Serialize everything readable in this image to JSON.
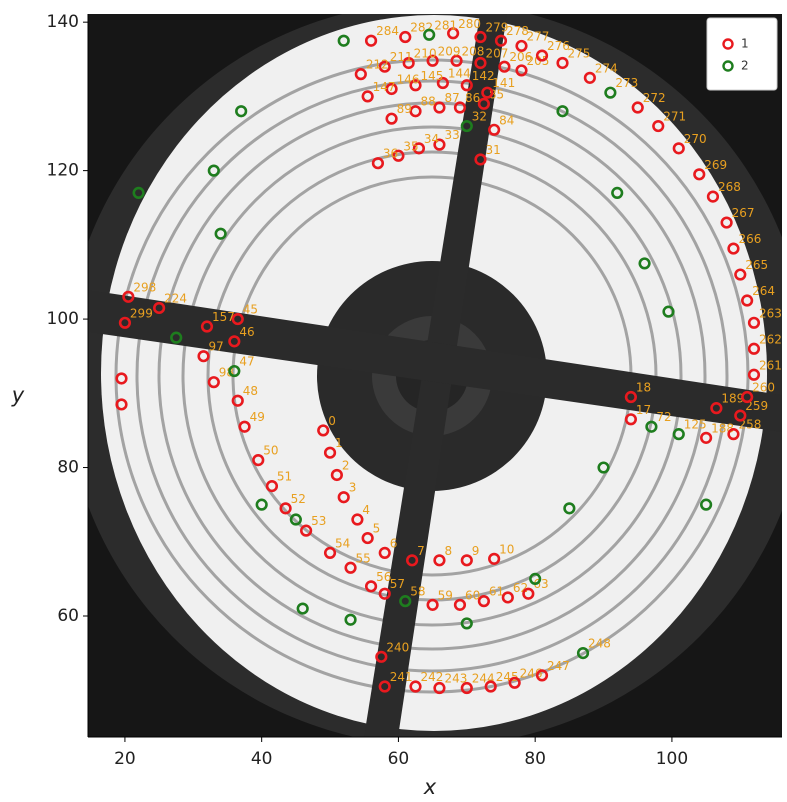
{
  "chart_data": {
    "type": "scatter",
    "xlabel": "x",
    "ylabel": "y",
    "xlim": [
      14.6,
      116.1
    ],
    "ylim": [
      43.7,
      141.1
    ],
    "xticks": [
      20,
      40,
      60,
      80,
      100
    ],
    "yticks": [
      60,
      80,
      100,
      120,
      140
    ],
    "legend": "upper right",
    "series": [
      {
        "name": "1",
        "color": "#e8191e",
        "x": [
          49,
          50,
          51,
          52,
          54,
          55.5,
          58,
          62,
          66,
          70,
          74,
          94,
          94,
          72,
          66,
          63,
          60,
          57,
          36.5,
          36,
          36.5,
          37.5,
          39.5,
          41.5,
          43.5,
          46.5,
          50,
          53,
          56,
          58,
          65,
          69,
          72.5,
          76,
          79,
          74,
          72.5,
          69,
          66,
          62.5,
          59,
          31.5,
          33,
          78,
          75.5,
          72,
          68.5,
          65,
          61.5,
          58,
          54.5,
          73,
          70,
          66.5,
          62.5,
          59,
          55.5,
          105,
          106.5,
          32,
          25,
          57.5,
          58,
          62.5,
          66,
          70,
          73.5,
          77,
          81,
          109,
          110,
          111,
          112,
          112,
          112,
          111,
          110,
          109,
          108,
          106,
          104,
          101,
          98,
          95,
          88,
          84,
          81,
          78,
          75,
          72,
          68,
          61,
          56,
          20.5,
          20,
          19.5,
          19.5
        ],
        "y": [
          85,
          82,
          79,
          76,
          73,
          70.5,
          68.5,
          67.5,
          67.5,
          67.5,
          67.7,
          86.5,
          89.5,
          121.5,
          123.5,
          123,
          122,
          121,
          100,
          97,
          89,
          85.5,
          81,
          77.5,
          74.5,
          71.5,
          68.5,
          66.5,
          64,
          63,
          61.5,
          61.5,
          62,
          62.5,
          63,
          125.5,
          129,
          128.5,
          128.5,
          128,
          127,
          95,
          91.5,
          133.5,
          134,
          134.5,
          134.8,
          134.8,
          134.5,
          134,
          133,
          130.5,
          131.5,
          131.8,
          131.5,
          131,
          130,
          84,
          88,
          99,
          101.5,
          54.5,
          50.5,
          50.5,
          50.3,
          50.3,
          50.5,
          51,
          52,
          84.5,
          87,
          89.5,
          92.5,
          96,
          99.5,
          102.5,
          106,
          109.5,
          113,
          116.5,
          119.5,
          123,
          126,
          128.5,
          132.5,
          134.5,
          135.5,
          136.8,
          137.5,
          138,
          138.5,
          138,
          137.5,
          103,
          99.5,
          92,
          88.5
        ],
        "point_labels": [
          "0",
          "1",
          "2",
          "3",
          "4",
          "5",
          "6",
          "7",
          "8",
          "9",
          "10",
          "17",
          "18",
          "31",
          "33",
          "34",
          "35",
          "36",
          "45",
          "46",
          "48",
          "49",
          "50",
          "51",
          "52",
          "53",
          "54",
          "55",
          "56",
          "57",
          "59",
          "60",
          "61",
          "62",
          "63",
          "84",
          "85",
          "86",
          "87",
          "88",
          "89",
          "97",
          "98",
          "205",
          "206",
          "207",
          "208",
          "209",
          "210",
          "211",
          "212",
          "141",
          "142",
          "144",
          "145",
          "146",
          "147",
          "188",
          "189",
          "157",
          "224",
          "240",
          "241",
          "242",
          "243",
          "244",
          "245",
          "246",
          "247",
          "258",
          "259",
          "260",
          "261",
          "262",
          "263",
          "264",
          "265",
          "266",
          "267",
          "268",
          "269",
          "270",
          "271",
          "272",
          "274",
          "275",
          "276",
          "277",
          "278",
          "279",
          "280",
          "282",
          "284",
          "298",
          "299",
          null,
          null
        ]
      },
      {
        "name": "2",
        "color": "#1e7d1e",
        "x": [
          70,
          36,
          61,
          97,
          101,
          91,
          87,
          64.5,
          52,
          37,
          22,
          33,
          34,
          27.5,
          84,
          92,
          96,
          99.5,
          90,
          85,
          105,
          80,
          70,
          53,
          46,
          45,
          40
        ],
        "y": [
          126,
          93,
          62,
          85.5,
          84.5,
          130.5,
          55,
          138.3,
          137.5,
          128,
          117,
          120,
          111.5,
          97.5,
          128,
          117,
          107.5,
          101,
          80,
          74.5,
          75,
          65,
          59,
          59.5,
          61,
          73,
          75
        ],
        "point_labels": [
          "32",
          "47",
          "58",
          "72",
          "125",
          "273",
          "248",
          "281",
          null,
          null,
          null,
          null,
          null,
          null,
          null,
          null,
          null,
          null,
          null,
          null,
          null,
          null,
          null,
          null,
          null,
          null,
          null
        ]
      }
    ]
  }
}
